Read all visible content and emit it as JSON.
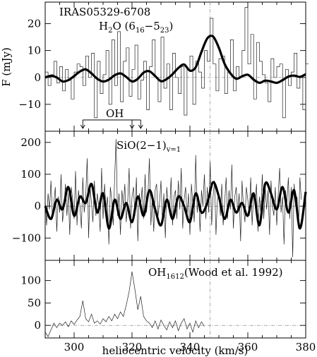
{
  "chart_data": {
    "type": "line",
    "xlabel": "heliocentric velocity (km/s)",
    "xlim": [
      290,
      380
    ],
    "x_ticks": [
      300,
      320,
      340,
      360,
      380
    ],
    "vline_x": 347,
    "panels": [
      {
        "id": "h2o",
        "title": "IRAS05329-6708",
        "label_main": "H",
        "label_sub1": "2",
        "label_mid": "O (6",
        "label_sub2": "16",
        "label_dash": "−5",
        "label_sub3": "23",
        "label_end": ")",
        "ylabel": "F (mJy)",
        "ylim": [
          -20,
          28
        ],
        "y_ticks": [
          -10,
          0,
          10,
          20
        ],
        "y_tick_labels": [
          "−10",
          "0",
          "10",
          "20"
        ],
        "oh_label": "OH",
        "oh_markers": [
          303,
          320,
          323
        ],
        "series": [
          {
            "style": "histogram",
            "step": 1.0,
            "x0": 290,
            "values": [
              2,
              -3,
              1,
              6,
              -2,
              4,
              -5,
              3,
              -1,
              -8,
              2,
              5,
              4,
              -3,
              8,
              0,
              9,
              -15,
              6,
              -6,
              1,
              10,
              -10,
              14,
              -3,
              17,
              -9,
              6,
              11,
              -7,
              3,
              12,
              -8,
              -1,
              6,
              -12,
              4,
              14,
              0,
              -9,
              15,
              -4,
              5,
              -12,
              9,
              0,
              -6,
              4,
              -14,
              3,
              8,
              -10,
              6,
              2,
              -4,
              10,
              6,
              22,
              5,
              -5,
              7,
              8,
              -6,
              2,
              14,
              -5,
              4,
              0,
              10,
              26,
              5,
              16,
              -8,
              13,
              6,
              1,
              -2,
              -9,
              7,
              0,
              4,
              5,
              -15,
              3,
              -3,
              2,
              9,
              -4,
              0,
              -12,
              5
            ]
          },
          {
            "style": "smooth",
            "x": [
              290,
              292,
              294,
              296,
              298,
              300,
              302,
              304,
              306,
              308,
              310,
              312,
              314,
              316,
              318,
              320,
              322,
              324,
              326,
              328,
              330,
              332,
              334,
              336,
              338,
              340,
              342,
              344,
              346,
              348,
              350,
              352,
              354,
              356,
              358,
              360,
              362,
              364,
              366,
              368,
              370,
              372,
              374,
              376,
              378,
              380
            ],
            "y": [
              0,
              0.6,
              0,
              -1.5,
              -1,
              0.5,
              2.2,
              3.0,
              1.5,
              -0.5,
              -1.5,
              -0.8,
              0.8,
              1.5,
              0.2,
              -1.5,
              -0.5,
              1.8,
              2.3,
              0.5,
              -1.4,
              -0.6,
              1.2,
              3.5,
              4.8,
              2.5,
              3.8,
              9.5,
              14.5,
              15.2,
              11.0,
              5.0,
              1.5,
              -0.5,
              0.4,
              1.0,
              -0.8,
              -2.0,
              -1.2,
              -1.5,
              -2.0,
              -1.0,
              0.3,
              0.7,
              0.2,
              1.2
            ]
          }
        ]
      },
      {
        "id": "sio",
        "label_main": "SiO(2−1)",
        "label_sub": "v=1",
        "ylim": [
          -170,
          235
        ],
        "y_ticks": [
          -100,
          0,
          100,
          200
        ],
        "y_tick_labels": [
          "−100",
          "0",
          "100",
          "200"
        ],
        "series": [
          {
            "style": "noisy",
            "step": 0.5,
            "x0": 290,
            "values": [
              20,
              -60,
              40,
              -10,
              80,
              -40,
              10,
              60,
              -80,
              30,
              -20,
              100,
              -50,
              0,
              70,
              -30,
              40,
              -90,
              60,
              20,
              -40,
              110,
              -60,
              50,
              0,
              -70,
              90,
              -20,
              30,
              150,
              -100,
              60,
              10,
              -50,
              80,
              -30,
              40,
              0,
              -80,
              120,
              -40,
              70,
              -10,
              30,
              -120,
              60,
              20,
              -60,
              90,
              210,
              -30,
              40,
              -90,
              50,
              0,
              70,
              -50,
              10,
              120,
              -70,
              30,
              60,
              -30,
              90,
              -110,
              40,
              0,
              60,
              -40,
              100,
              -20,
              30,
              150,
              -60,
              20,
              -80,
              50,
              70,
              -30,
              10,
              80,
              -50,
              40,
              -100,
              60,
              0,
              -20,
              90,
              -60,
              30,
              50,
              -40,
              80,
              -10,
              120,
              -70,
              20,
              60,
              -30,
              40,
              -90,
              70,
              10,
              -50,
              160,
              -20,
              30,
              -80,
              50,
              0,
              100,
              -40,
              60,
              -20,
              140,
              -60,
              30,
              80,
              -90,
              20,
              40,
              -30,
              70,
              -60,
              10,
              90,
              -40,
              50,
              -10,
              130,
              -70,
              30,
              60,
              -20,
              40,
              -110,
              80,
              0,
              -50,
              60,
              20,
              -30,
              90,
              -60,
              40,
              10,
              70,
              -80,
              30,
              -20,
              100,
              -40,
              60,
              -10,
              50,
              -90,
              80,
              0,
              -30,
              60,
              -60,
              40,
              120,
              -20,
              30,
              -120,
              50,
              10,
              90,
              -40,
              60,
              -160,
              70,
              0,
              30,
              -70,
              90,
              20
            ]
          },
          {
            "style": "smooth",
            "x": [
              290,
              292,
              294,
              296,
              298,
              300,
              302,
              304,
              306,
              308,
              310,
              312,
              314,
              316,
              318,
              320,
              322,
              324,
              326,
              328,
              330,
              332,
              334,
              336,
              338,
              340,
              342,
              344,
              346,
              348,
              350,
              352,
              354,
              356,
              358,
              360,
              362,
              364,
              366,
              368,
              370,
              372,
              374,
              376,
              378,
              380
            ],
            "y": [
              0,
              -40,
              20,
              -10,
              60,
              -30,
              30,
              10,
              70,
              -20,
              40,
              -70,
              20,
              -40,
              10,
              -50,
              30,
              -30,
              50,
              -10,
              -60,
              20,
              -40,
              30,
              0,
              -50,
              40,
              -20,
              10,
              75,
              30,
              -40,
              20,
              -20,
              10,
              -30,
              40,
              -60,
              70,
              40,
              -10,
              60,
              -20,
              50,
              -70,
              45
            ]
          }
        ]
      },
      {
        "id": "oh",
        "label_main": "OH",
        "label_sub": "1612",
        "label_tail": "(Wood et al. 1992)",
        "ylim": [
          -28,
          145
        ],
        "y_ticks": [
          0,
          50,
          100
        ],
        "y_tick_labels": [
          "0",
          "50",
          "100"
        ],
        "series": [
          {
            "style": "line",
            "x": [
              290,
              291,
              292,
              293,
              294,
              295,
              296,
              297,
              298,
              299,
              300,
              301,
              302,
              303,
              304,
              305,
              306,
              307,
              308,
              309,
              310,
              311,
              312,
              313,
              314,
              315,
              316,
              317,
              318,
              319,
              320,
              321,
              322,
              323,
              324,
              325,
              326,
              327,
              328,
              329,
              330,
              331,
              332,
              333,
              334,
              335,
              336,
              337,
              338,
              339,
              340,
              341,
              342,
              343,
              344,
              345
            ],
            "y": [
              -15,
              -25,
              -10,
              5,
              -5,
              5,
              0,
              8,
              -3,
              10,
              2,
              12,
              20,
              55,
              15,
              8,
              25,
              5,
              10,
              3,
              15,
              8,
              20,
              10,
              25,
              15,
              30,
              20,
              45,
              75,
              120,
              80,
              35,
              65,
              20,
              10,
              5,
              -5,
              10,
              -8,
              12,
              0,
              -10,
              8,
              -5,
              10,
              -12,
              5,
              15,
              -8,
              5,
              -15,
              10,
              -5,
              8,
              -2
            ]
          }
        ]
      }
    ]
  }
}
